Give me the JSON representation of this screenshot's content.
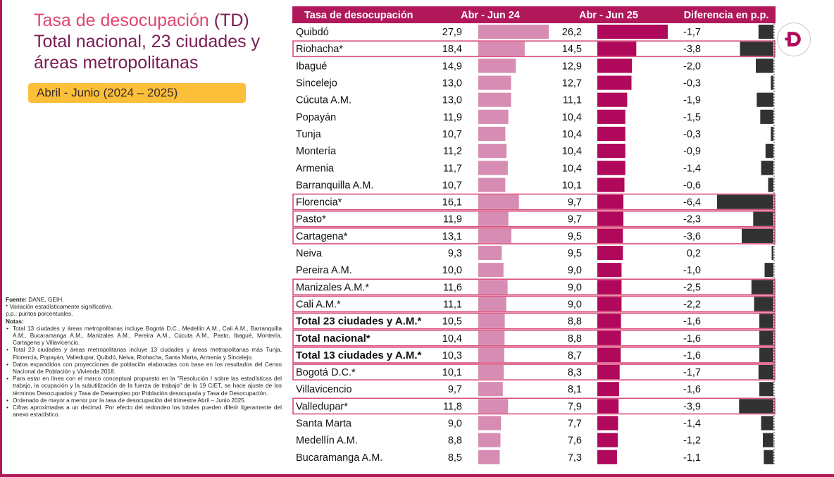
{
  "title": {
    "line1_name": "Tasa de desocupación",
    "line1_abbr": "(TD)",
    "line2": "Total nacional, 23 ciudades y",
    "line3": "áreas metropolitanas"
  },
  "period_label": "Abril - Junio (2024 – 2025)",
  "notes": {
    "source": "Fuente:",
    "source_text": "DANE, GEIH.",
    "asterisk": "* Variación estadísticamente significativa.",
    "pp": "p.p.: puntos porcentuales.",
    "notes_heading": "Notas",
    "items": [
      "Total 13 ciudades y áreas metropolitanas incluye Bogotá D.C., Medellín A.M., Cali A.M., Barranquilla A.M., Bucaramanga A.M., Manizales A.M., Pereira A.M., Cúcuta A.M., Pasto, Ibagué, Montería, Cartagena y Villavicencio.",
      "Total 23 ciudades y áreas metropolitanas incluye 13 ciudades y áreas metropolitanas más Tunja, Florencia, Popayán, Valledupar, Quibdó, Neiva, Riohacha, Santa Marta, Armenia y Sincelejo.",
      "Datos expandidos con proyecciones de población elaboradas con base en los resultados del Censo Nacional de Población y Vivienda 2018.",
      "Para estar en línea con el marco conceptual propuesto en la \"Resolución I sobre las estadísticas del trabajo, la ocupación y la subutilización de la fuerza de trabajo\" de la 19 CIET, se hace ajuste de los términos Desocupados y Tasa de Desempleo por Población desocupada y Tasa de Desocupación.",
      "Ordenado de mayor a menor por la tasa de desocupación del trimestre Abril – Junio 2025.",
      "Cifras aproximadas a un decimal. Por efecto del redondeo los totales pueden diferir ligeramente del anexo estadístico."
    ]
  },
  "colors": {
    "header_bg": "#b0185a",
    "bar_2024": "#d78db3",
    "bar_2025": "#b0085a",
    "bar_diff": "#323232",
    "highlight_border": "#d94f7d",
    "title_accent": "#e0456f",
    "title_main": "#7a1b52",
    "period_bg": "#fbbf3a"
  },
  "logo_icon": "dane-d-logo-icon",
  "chart_data": {
    "type": "table",
    "headers": [
      "Tasa de desocupación",
      "Abr - Jun 24",
      "Abr - Jun 25",
      "Diferencia en p.p."
    ],
    "unit": "%",
    "rows": [
      {
        "name": "Quibdó",
        "v2024": 27.9,
        "v2025": 26.2,
        "diff": -1.7,
        "t2024": "27,9",
        "t2025": "26,2",
        "tdiff": "-1,7",
        "highlight": false,
        "bold": false
      },
      {
        "name": "Riohacha*",
        "v2024": 18.4,
        "v2025": 14.5,
        "diff": -3.8,
        "t2024": "18,4",
        "t2025": "14,5",
        "tdiff": "-3,8",
        "highlight": true,
        "bold": false
      },
      {
        "name": "Ibagué",
        "v2024": 14.9,
        "v2025": 12.9,
        "diff": -2.0,
        "t2024": "14,9",
        "t2025": "12,9",
        "tdiff": "-2,0",
        "highlight": false,
        "bold": false
      },
      {
        "name": "Sincelejo",
        "v2024": 13.0,
        "v2025": 12.7,
        "diff": -0.3,
        "t2024": "13,0",
        "t2025": "12,7",
        "tdiff": "-0,3",
        "highlight": false,
        "bold": false
      },
      {
        "name": "Cúcuta A.M.",
        "v2024": 13.0,
        "v2025": 11.1,
        "diff": -1.9,
        "t2024": "13,0",
        "t2025": "11,1",
        "tdiff": "-1,9",
        "highlight": false,
        "bold": false
      },
      {
        "name": "Popayán",
        "v2024": 11.9,
        "v2025": 10.4,
        "diff": -1.5,
        "t2024": "11,9",
        "t2025": "10,4",
        "tdiff": "-1,5",
        "highlight": false,
        "bold": false
      },
      {
        "name": "Tunja",
        "v2024": 10.7,
        "v2025": 10.4,
        "diff": -0.3,
        "t2024": "10,7",
        "t2025": "10,4",
        "tdiff": "-0,3",
        "highlight": false,
        "bold": false
      },
      {
        "name": "Montería",
        "v2024": 11.2,
        "v2025": 10.4,
        "diff": -0.9,
        "t2024": "11,2",
        "t2025": "10,4",
        "tdiff": "-0,9",
        "highlight": false,
        "bold": false
      },
      {
        "name": "Armenia",
        "v2024": 11.7,
        "v2025": 10.4,
        "diff": -1.4,
        "t2024": "11,7",
        "t2025": "10,4",
        "tdiff": "-1,4",
        "highlight": false,
        "bold": false
      },
      {
        "name": "Barranquilla A.M.",
        "v2024": 10.7,
        "v2025": 10.1,
        "diff": -0.6,
        "t2024": "10,7",
        "t2025": "10,1",
        "tdiff": "-0,6",
        "highlight": false,
        "bold": false
      },
      {
        "name": "Florencia*",
        "v2024": 16.1,
        "v2025": 9.7,
        "diff": -6.4,
        "t2024": "16,1",
        "t2025": "9,7",
        "tdiff": "-6,4",
        "highlight": true,
        "bold": false
      },
      {
        "name": "Pasto*",
        "v2024": 11.9,
        "v2025": 9.7,
        "diff": -2.3,
        "t2024": "11,9",
        "t2025": "9,7",
        "tdiff": "-2,3",
        "highlight": true,
        "bold": false
      },
      {
        "name": "Cartagena*",
        "v2024": 13.1,
        "v2025": 9.5,
        "diff": -3.6,
        "t2024": "13,1",
        "t2025": "9,5",
        "tdiff": "-3,6",
        "highlight": true,
        "bold": false
      },
      {
        "name": "Neiva",
        "v2024": 9.3,
        "v2025": 9.5,
        "diff": 0.2,
        "t2024": "9,3",
        "t2025": "9,5",
        "tdiff": "0,2",
        "highlight": false,
        "bold": false
      },
      {
        "name": "Pereira A.M.",
        "v2024": 10.0,
        "v2025": 9.0,
        "diff": -1.0,
        "t2024": "10,0",
        "t2025": "9,0",
        "tdiff": "-1,0",
        "highlight": false,
        "bold": false
      },
      {
        "name": "Manizales A.M.*",
        "v2024": 11.6,
        "v2025": 9.0,
        "diff": -2.5,
        "t2024": "11,6",
        "t2025": "9,0",
        "tdiff": "-2,5",
        "highlight": true,
        "bold": false
      },
      {
        "name": "Cali A.M.*",
        "v2024": 11.1,
        "v2025": 9.0,
        "diff": -2.2,
        "t2024": "11,1",
        "t2025": "9,0",
        "tdiff": "-2,2",
        "highlight": true,
        "bold": false
      },
      {
        "name": "Total 23 ciudades y A.M.*",
        "v2024": 10.5,
        "v2025": 8.8,
        "diff": -1.6,
        "t2024": "10,5",
        "t2025": "8,8",
        "tdiff": "-1,6",
        "highlight": true,
        "bold": true
      },
      {
        "name": "Total nacional*",
        "v2024": 10.4,
        "v2025": 8.8,
        "diff": -1.6,
        "t2024": "10,4",
        "t2025": "8,8",
        "tdiff": "-1,6",
        "highlight": true,
        "bold": true
      },
      {
        "name": "Total 13 ciudades y A.M.*",
        "v2024": 10.3,
        "v2025": 8.7,
        "diff": -1.6,
        "t2024": "10,3",
        "t2025": "8,7",
        "tdiff": "-1,6",
        "highlight": true,
        "bold": true
      },
      {
        "name": "Bogotá D.C.*",
        "v2024": 10.1,
        "v2025": 8.3,
        "diff": -1.7,
        "t2024": "10,1",
        "t2025": "8,3",
        "tdiff": "-1,7",
        "highlight": true,
        "bold": false
      },
      {
        "name": "Villavicencio",
        "v2024": 9.7,
        "v2025": 8.1,
        "diff": -1.6,
        "t2024": "9,7",
        "t2025": "8,1",
        "tdiff": "-1,6",
        "highlight": false,
        "bold": false
      },
      {
        "name": "Valledupar*",
        "v2024": 11.8,
        "v2025": 7.9,
        "diff": -3.9,
        "t2024": "11,8",
        "t2025": "7,9",
        "tdiff": "-3,9",
        "highlight": true,
        "bold": false
      },
      {
        "name": "Santa Marta",
        "v2024": 9.0,
        "v2025": 7.7,
        "diff": -1.4,
        "t2024": "9,0",
        "t2025": "7,7",
        "tdiff": "-1,4",
        "highlight": false,
        "bold": false
      },
      {
        "name": "Medellín A.M.",
        "v2024": 8.8,
        "v2025": 7.6,
        "diff": -1.2,
        "t2024": "8,8",
        "t2025": "7,6",
        "tdiff": "-1,2",
        "highlight": false,
        "bold": false
      },
      {
        "name": "Bucaramanga A.M.",
        "v2024": 8.5,
        "v2025": 7.3,
        "diff": -1.1,
        "t2024": "8,5",
        "t2025": "7,3",
        "tdiff": "-1,1",
        "highlight": false,
        "bold": false
      }
    ]
  }
}
